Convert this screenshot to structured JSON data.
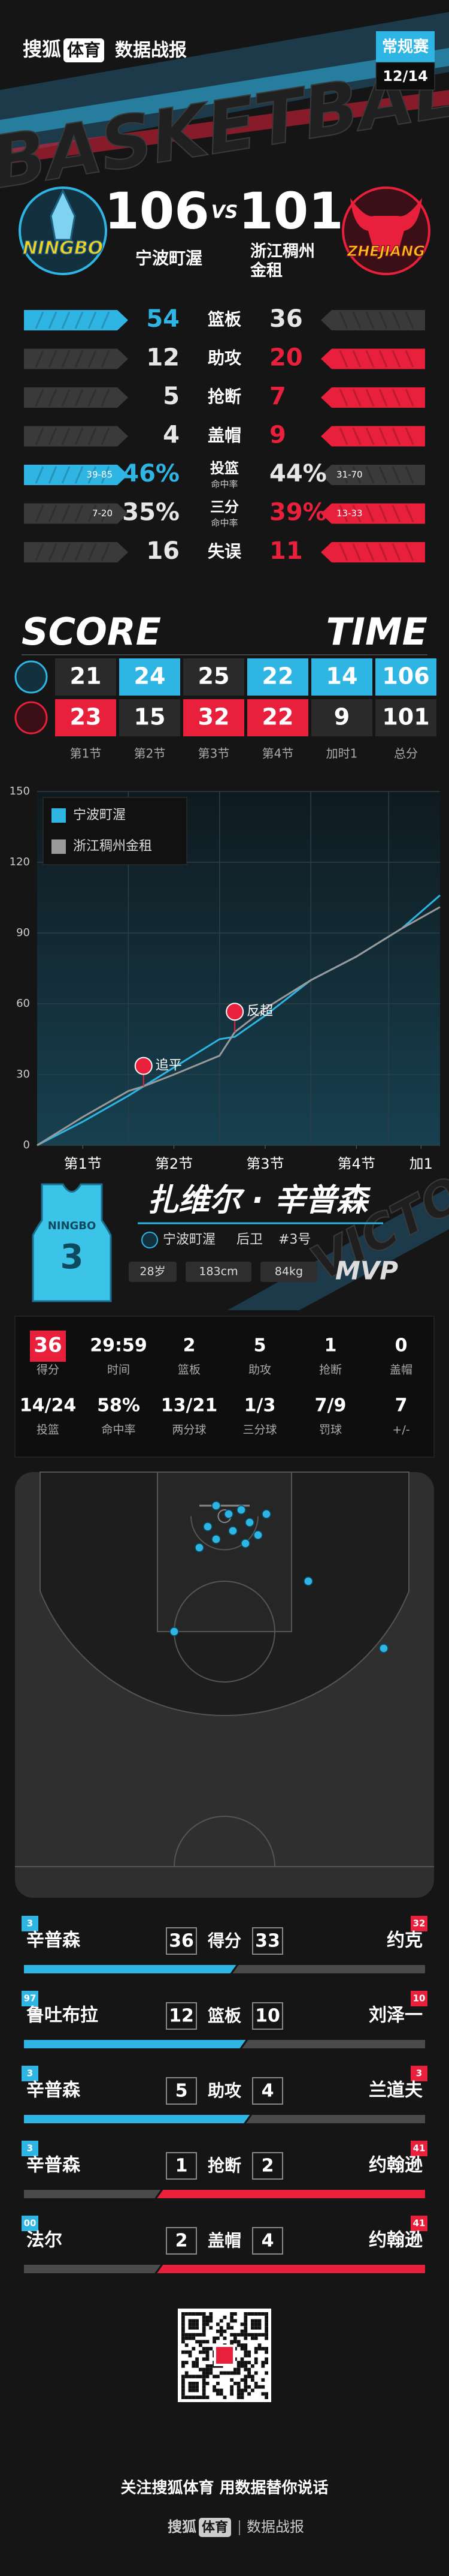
{
  "header": {
    "brand": "搜狐",
    "brand_tag": "体育",
    "title": "数据战报",
    "stage": "常规赛",
    "date": "12/14",
    "bg_text": "BASKETBALL"
  },
  "teams": {
    "home": {
      "name": "宁波町渥",
      "logo_text": "NINGBO",
      "score": 106,
      "color": "#2fb5e4"
    },
    "vs": "VS",
    "away": {
      "name": "浙江稠州金租",
      "logo_text": "ZHEJIANG",
      "score": 101,
      "color": "#e8203c"
    }
  },
  "team_stats": [
    {
      "label": "篮板",
      "home": 54,
      "away": 36,
      "highlight": "home"
    },
    {
      "label": "助攻",
      "home": 12,
      "away": 20,
      "highlight": "away"
    },
    {
      "label": "抢断",
      "home": 5,
      "away": 7,
      "highlight": "away"
    },
    {
      "label": "盖帽",
      "home": 4,
      "away": 9,
      "highlight": "away"
    },
    {
      "label": "投篮",
      "sublabel": "命中率",
      "home": 46,
      "home_label": "46%",
      "home_detail": "39-85",
      "away": 44,
      "away_label": "44%",
      "away_detail": "31-70",
      "highlight": "home"
    },
    {
      "label": "三分",
      "sublabel": "命中率",
      "home": 35,
      "home_label": "35%",
      "home_detail": "7-20",
      "away": 39,
      "away_label": "39%",
      "away_detail": "13-33",
      "highlight": "away"
    },
    {
      "label": "失误",
      "home": 16,
      "away": 11,
      "highlight": "away"
    }
  ],
  "scoreboard": {
    "title_left": "SCORE",
    "title_right": "TIME",
    "periods": [
      "第1节",
      "第2节",
      "第3节",
      "第4节",
      "加时1",
      "总分"
    ],
    "home": [
      21,
      24,
      25,
      22,
      14,
      106
    ],
    "away": [
      23,
      15,
      32,
      22,
      9,
      101
    ]
  },
  "chart_data": {
    "type": "line",
    "x": [
      0,
      6,
      12,
      14,
      18,
      24,
      26,
      30,
      36,
      42,
      48,
      53
    ],
    "series": [
      {
        "name": "宁波町渥",
        "color": "#2fb5e4",
        "values": [
          0,
          10,
          21,
          25,
          33,
          45,
          46,
          55,
          70,
          80,
          92,
          106
        ]
      },
      {
        "name": "浙江稠州金租",
        "color": "#9a9a9a",
        "values": [
          0,
          12,
          23,
          25,
          30,
          38,
          48,
          58,
          70,
          80,
          92,
          101
        ]
      }
    ],
    "xlim": [
      0,
      53
    ],
    "xticks": [
      {
        "value": 6,
        "label": "第1节"
      },
      {
        "value": 18,
        "label": "第2节"
      },
      {
        "value": 30,
        "label": "第3节"
      },
      {
        "value": 42,
        "label": "第4节"
      },
      {
        "value": 50.5,
        "label": "加1"
      }
    ],
    "ylim": [
      0,
      150
    ],
    "yticks": [
      0,
      30,
      60,
      90,
      120,
      150
    ],
    "grid": true,
    "legend": "top-left",
    "annotations": [
      {
        "text": "追平",
        "x": 14,
        "y": 25
      },
      {
        "text": "反超",
        "x": 26,
        "y": 48
      }
    ]
  },
  "player": {
    "name": "扎维尔 · 辛普森",
    "team": "宁波町渥",
    "position": "后卫",
    "number": "#3号",
    "age": "28岁",
    "height": "183cm",
    "weight": "84kg",
    "award": "MVP",
    "jersey_text": "NINGBO",
    "jersey_number": "3",
    "bg_text": "VICTORY",
    "stats": [
      {
        "value": 36,
        "label": "得分"
      },
      {
        "value": "29:59",
        "label": "时间"
      },
      {
        "value": 2,
        "label": "篮板"
      },
      {
        "value": 5,
        "label": "助攻"
      },
      {
        "value": 1,
        "label": "抢断"
      },
      {
        "value": 0,
        "label": "盖帽"
      },
      {
        "value": "14/24",
        "label": "投篮"
      },
      {
        "value": "58%",
        "label": "命中率"
      },
      {
        "value": "13/21",
        "label": "两分球"
      },
      {
        "value": "1/3",
        "label": "三分球"
      },
      {
        "value": "7/9",
        "label": "罚球"
      },
      {
        "value": 7,
        "label": "+/-"
      }
    ]
  },
  "shot_chart": {
    "x": [
      -1,
      0.5,
      2,
      3,
      -2,
      1,
      4,
      -1,
      5,
      2.5,
      -3,
      10,
      -6,
      19
    ],
    "y": [
      4,
      5,
      4.5,
      6,
      6.5,
      7,
      7.5,
      8,
      5,
      8.5,
      9,
      13,
      19,
      21
    ]
  },
  "leaders": [
    {
      "left_number": "3",
      "left_name": "辛普森",
      "left_value": 36,
      "label": "得分",
      "right_value": 33,
      "right_name": "约克",
      "right_number": "32"
    },
    {
      "left_number": "97",
      "left_name": "鲁吐布拉",
      "left_value": 12,
      "label": "篮板",
      "right_value": 10,
      "right_name": "刘泽一",
      "right_number": "10"
    },
    {
      "left_number": "3",
      "left_name": "辛普森",
      "left_value": 5,
      "label": "助攻",
      "right_value": 4,
      "right_name": "兰道夫",
      "right_number": "3"
    },
    {
      "left_number": "3",
      "left_name": "辛普森",
      "left_value": 1,
      "label": "抢断",
      "right_value": 2,
      "right_name": "约翰逊",
      "right_number": "41"
    },
    {
      "left_number": "00",
      "left_name": "法尔",
      "left_value": 2,
      "label": "盖帽",
      "right_value": 4,
      "right_name": "约翰逊",
      "right_number": "41"
    }
  ],
  "footer": {
    "slogan": "关注搜狐体育 用数据替你说话"
  }
}
